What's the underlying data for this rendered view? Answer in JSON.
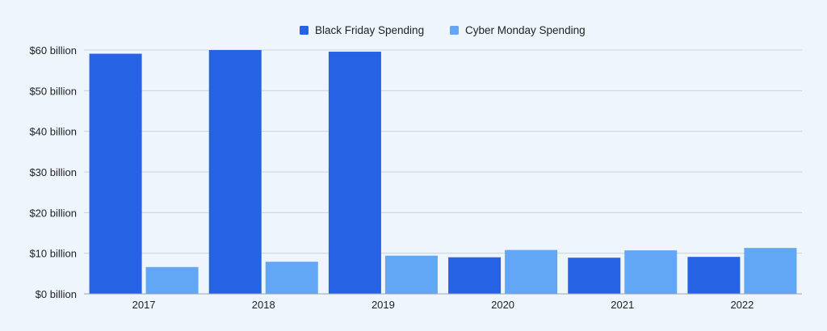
{
  "chart_data": {
    "type": "bar",
    "categories": [
      "2017",
      "2018",
      "2019",
      "2020",
      "2021",
      "2022"
    ],
    "series": [
      {
        "name": "Black Friday Spending",
        "color": "#2563e4",
        "values": [
          59.1,
          60.0,
          59.6,
          9.0,
          8.9,
          9.1
        ]
      },
      {
        "name": "Cyber Monday Spending",
        "color": "#62a6f6",
        "values": [
          6.6,
          7.9,
          9.4,
          10.8,
          10.7,
          11.3
        ]
      }
    ],
    "y_ticks": [
      "$0 billion",
      "$10 billion",
      "$20 billion",
      "$30 billion",
      "$40 billion",
      "$50 billion",
      "$60 billion"
    ],
    "ylim": [
      0,
      60
    ],
    "title": "",
    "xlabel": "",
    "ylabel": "",
    "grid": true,
    "legend_position": "top-center"
  },
  "colors": {
    "background": "#eef5fd",
    "grid": "#c9d2dc",
    "axis": "#9aa4ae",
    "text": "#222222"
  }
}
